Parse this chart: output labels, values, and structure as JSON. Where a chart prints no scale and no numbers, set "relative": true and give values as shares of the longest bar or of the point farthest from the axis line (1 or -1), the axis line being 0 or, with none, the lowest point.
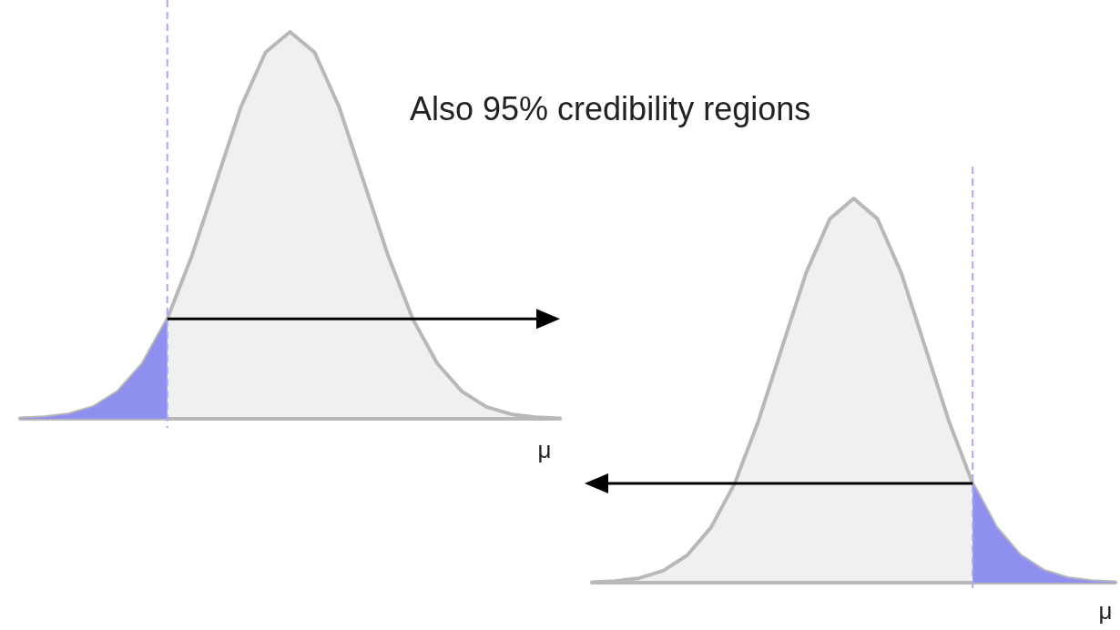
{
  "chart_data": [
    {
      "type": "area",
      "title": "Also 95% credibility regions",
      "xlabel": "μ",
      "relative": true,
      "categories": [
        null,
        null,
        null,
        null,
        null,
        null,
        null,
        null,
        null,
        null,
        null,
        null,
        null,
        null,
        null,
        null,
        null,
        null,
        null,
        null,
        null,
        null,
        null
      ],
      "series": [
        {
          "color": "#f0f0f0",
          "values": [
            0.001,
            0.004,
            0.012,
            0.031,
            0.071,
            0.143,
            0.258,
            0.421,
            0.614,
            0.806,
            0.947,
            1,
            0.947,
            0.806,
            0.614,
            0.421,
            0.258,
            0.143,
            0.071,
            0.031,
            0.012,
            0.004,
            0.001
          ]
        },
        {
          "color": "#8f8ff0",
          "values": [
            0.001,
            0.004,
            0.012,
            0.031,
            0.071,
            0.143,
            0.258,
            null,
            null,
            null,
            null,
            null,
            null,
            null,
            null,
            null,
            null,
            null,
            null,
            null,
            null,
            null,
            null
          ]
        }
      ]
    },
    {
      "type": "area",
      "xlabel": "μ",
      "relative": true,
      "categories": [
        null,
        null,
        null,
        null,
        null,
        null,
        null,
        null,
        null,
        null,
        null,
        null,
        null,
        null,
        null,
        null,
        null,
        null,
        null,
        null,
        null,
        null,
        null
      ],
      "series": [
        {
          "color": "#f0f0f0",
          "values": [
            0.001,
            0.004,
            0.012,
            0.031,
            0.071,
            0.143,
            0.258,
            0.421,
            0.614,
            0.806,
            0.947,
            1,
            0.947,
            0.806,
            0.614,
            0.421,
            0.258,
            0.143,
            0.071,
            0.031,
            0.012,
            0.004,
            0.001
          ]
        },
        {
          "color": "#8f8ff0",
          "values": [
            null,
            null,
            null,
            null,
            null,
            null,
            null,
            null,
            null,
            null,
            null,
            null,
            null,
            null,
            null,
            null,
            0.258,
            0.143,
            0.071,
            0.031,
            0.012,
            0.004,
            0.001
          ]
        }
      ]
    }
  ]
}
